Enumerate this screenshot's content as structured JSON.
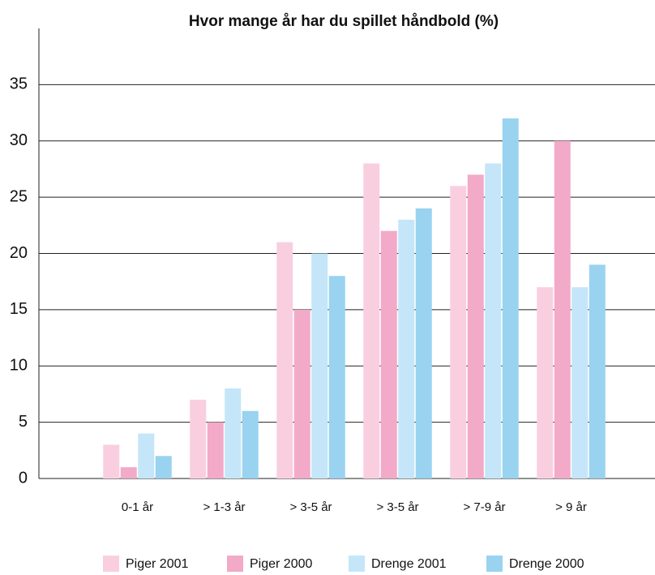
{
  "chart_data": {
    "type": "bar",
    "title": "Hvor mange år har du spillet håndbold (%)",
    "categories": [
      "0-1 år",
      "> 1-3 år",
      "> 3-5 år",
      "> 3-5 år",
      "> 7-9 år",
      "> 9 år"
    ],
    "series": [
      {
        "name": "Piger 2001",
        "color": "#f9cfe0",
        "values": [
          3,
          7,
          21,
          28,
          26,
          17
        ]
      },
      {
        "name": "Piger 2000",
        "color": "#f2aac8",
        "values": [
          1,
          5,
          15,
          22,
          27,
          30
        ]
      },
      {
        "name": "Drenge 2001",
        "color": "#c4e6f8",
        "values": [
          4,
          8,
          20,
          23,
          28,
          17
        ]
      },
      {
        "name": "Drenge 2000",
        "color": "#99d3f0",
        "values": [
          2,
          6,
          18,
          24,
          32,
          19
        ]
      }
    ],
    "ylim": [
      0,
      40
    ],
    "yticks": [
      0,
      5,
      10,
      15,
      20,
      25,
      30,
      35
    ],
    "grid": true,
    "legend": "bottom"
  }
}
